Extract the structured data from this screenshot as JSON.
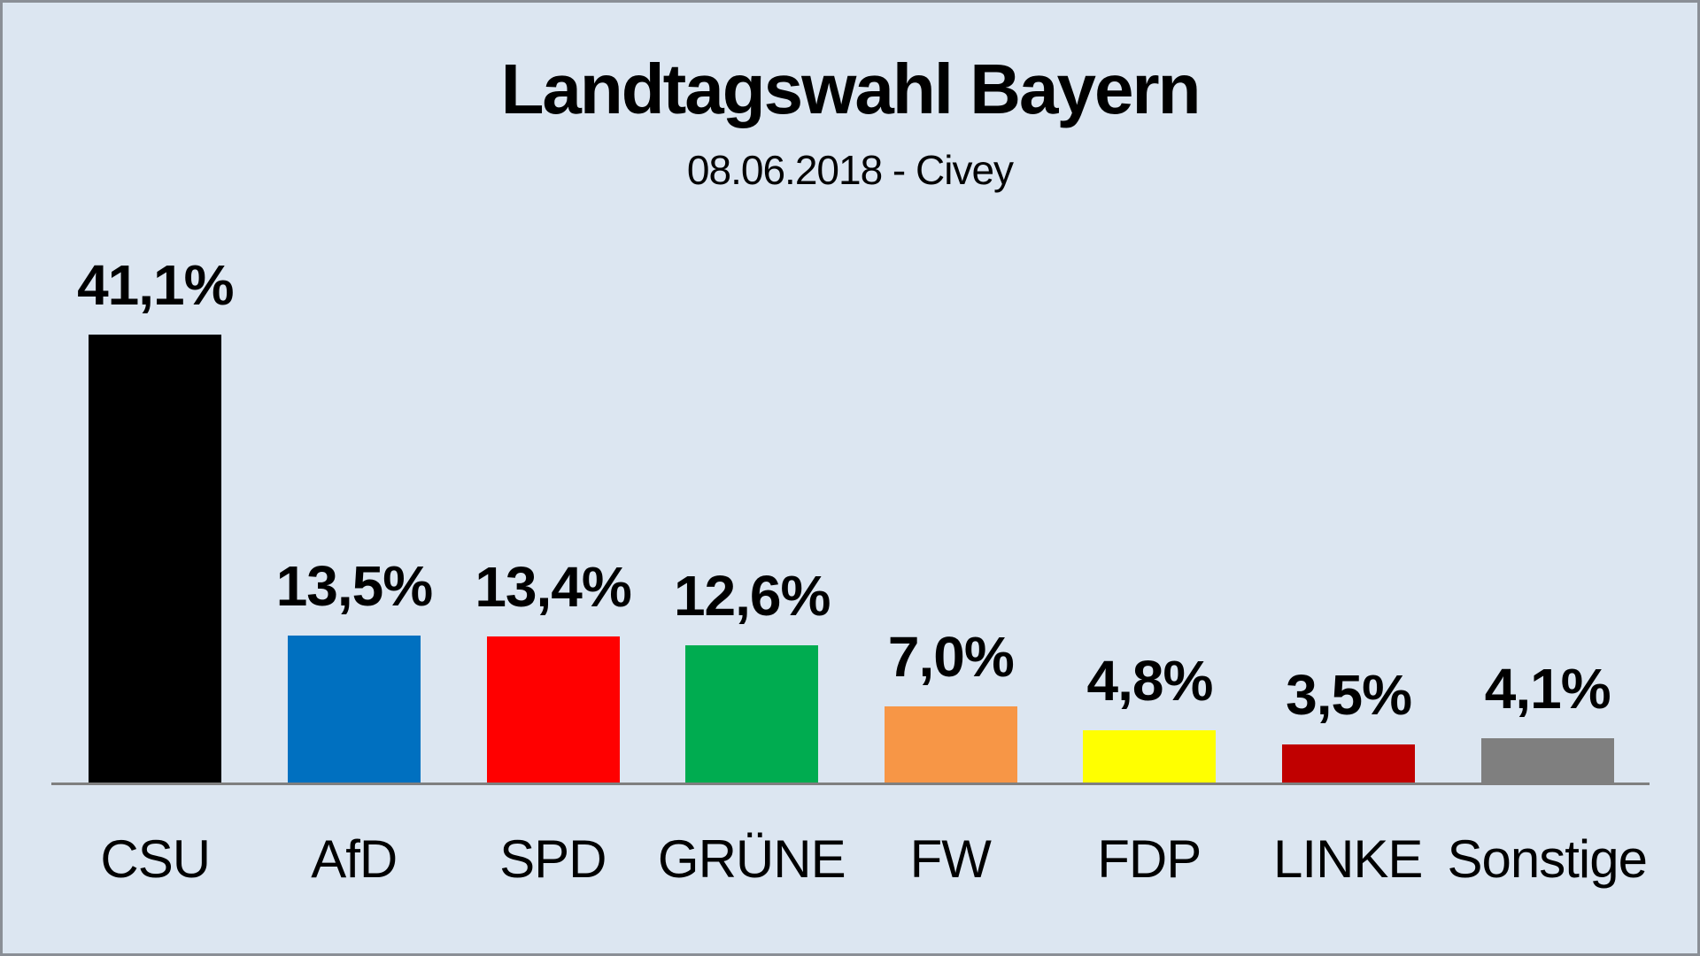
{
  "header": {
    "title": "Landtagswahl Bayern",
    "subtitle": "08.06.2018 - Civey"
  },
  "chart_data": {
    "type": "bar",
    "title": "Landtagswahl Bayern",
    "subtitle": "08.06.2018 - Civey",
    "categories": [
      "CSU",
      "AfD",
      "SPD",
      "GRÜNE",
      "FW",
      "FDP",
      "LINKE",
      "Sonstige"
    ],
    "values": [
      41.1,
      13.5,
      13.4,
      12.6,
      7.0,
      4.8,
      3.5,
      4.1
    ],
    "value_labels": [
      "41,1%",
      "13,5%",
      "13,4%",
      "12,6%",
      "7,0%",
      "4,8%",
      "3,5%",
      "4,1%"
    ],
    "bar_colors": [
      "#000000",
      "#0070C0",
      "#FF0000",
      "#00AC50",
      "#F79646",
      "#FFFF00",
      "#C00000",
      "#7F7F7F"
    ],
    "xlabel": "",
    "ylabel": "",
    "ylim": [
      0,
      45
    ],
    "grid": false,
    "legend": false,
    "background_color": "#DCE6F1",
    "axis_color": "#7F7F7F"
  }
}
